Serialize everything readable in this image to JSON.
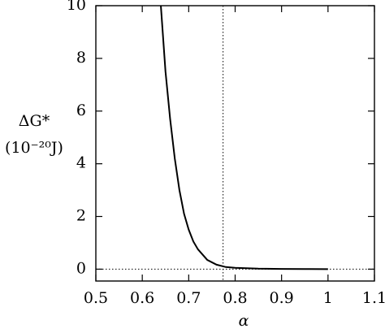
{
  "chart_data": {
    "type": "line",
    "x_label": "α",
    "y_label": [
      "ΔG*",
      "(10⁻²⁰J)"
    ],
    "x": [
      0.64,
      0.65,
      0.66,
      0.67,
      0.68,
      0.69,
      0.7,
      0.71,
      0.72,
      0.74,
      0.76,
      0.78,
      0.8,
      0.85,
      0.9,
      0.95,
      1.0
    ],
    "series": [
      {
        "color": "#000000",
        "values": [
          10,
          7.5,
          5.7,
          4.2,
          3.0,
          2.1,
          1.5,
          1.05,
          0.75,
          0.35,
          0.17,
          0.08,
          0.05,
          0.02,
          0.01,
          0.005,
          0
        ]
      }
    ],
    "xlim": [
      0.5,
      1.1
    ],
    "xticks": [
      0.5,
      0.6,
      0.7,
      0.8,
      0.9,
      1,
      1.1
    ],
    "ylim": [
      -0.45,
      10
    ],
    "yticks": [
      0,
      2,
      4,
      6,
      8,
      10
    ],
    "reference_lines": {
      "x": [
        0.774
      ],
      "y": [
        0
      ]
    }
  }
}
